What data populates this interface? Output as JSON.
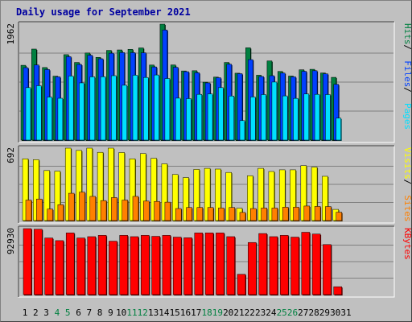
{
  "title": "Daily usage for September 2021",
  "colors": {
    "background": "#c0c0c0",
    "hits": "#008040",
    "files": "#0040ff",
    "pages": "#00e0ff",
    "visits": "#ffff00",
    "sites": "#ff8000",
    "kbytes": "#ff0000",
    "title": "#0000a0",
    "weekend": "#008040"
  },
  "chart_data": [
    {
      "type": "bar",
      "panel": "hits-files-pages",
      "axis_max_label": "1962",
      "ylim": [
        0,
        1962
      ],
      "grid": true,
      "legend": [
        {
          "text": "Hits",
          "color": "#008040"
        },
        {
          "text": "Files",
          "color": "#0040ff"
        },
        {
          "text": "Pages",
          "color": "#00e0ff"
        }
      ],
      "categories": [
        "1",
        "2",
        "3",
        "4",
        "5",
        "6",
        "7",
        "8",
        "9",
        "10",
        "11",
        "12",
        "13",
        "14",
        "15",
        "16",
        "17",
        "18",
        "19",
        "20",
        "21",
        "22",
        "23",
        "24",
        "25",
        "26",
        "27",
        "28",
        "29",
        "30",
        "31"
      ],
      "series": [
        {
          "name": "Hits",
          "values": [
            1266,
            1540,
            1228,
            1082,
            1446,
            1314,
            1474,
            1400,
            1518,
            1526,
            1536,
            1560,
            1270,
            1962,
            1272,
            1170,
            1174,
            980,
            1066,
            1314,
            1132,
            1562,
            1098,
            1340,
            1162,
            1084,
            1190,
            1198,
            1136,
            1062,
            0
          ]
        },
        {
          "name": "Files",
          "values": [
            1226,
            1272,
            1194,
            1070,
            1412,
            1280,
            1436,
            1376,
            1470,
            1482,
            1480,
            1478,
            1238,
            1864,
            1232,
            1158,
            1140,
            968,
            1056,
            1284,
            1124,
            1362,
            1076,
            1090,
            1134,
            1070,
            1164,
            1174,
            1122,
            944,
            0
          ]
        },
        {
          "name": "Pages",
          "values": [
            888,
            920,
            728,
            708,
            1084,
            968,
            1070,
            1072,
            1090,
            928,
            1098,
            1060,
            1102,
            1042,
            710,
            702,
            774,
            782,
            888,
            746,
            330,
            730,
            770,
            982,
            748,
            706,
            780,
            774,
            770,
            372,
            0
          ]
        }
      ]
    },
    {
      "type": "bar",
      "panel": "visits-sites",
      "axis_max_label": "692",
      "ylim": [
        0,
        692
      ],
      "grid": true,
      "legend": [
        {
          "text": "Visits",
          "color": "#ffff00"
        },
        {
          "text": "Sites",
          "color": "#ff8000"
        }
      ],
      "categories": [
        "1",
        "2",
        "3",
        "4",
        "5",
        "6",
        "7",
        "8",
        "9",
        "10",
        "11",
        "12",
        "13",
        "14",
        "15",
        "16",
        "17",
        "18",
        "19",
        "20",
        "21",
        "22",
        "23",
        "24",
        "25",
        "26",
        "27",
        "28",
        "29",
        "30",
        "31"
      ],
      "series": [
        {
          "name": "Visits",
          "values": [
            590,
            582,
            478,
            472,
            692,
            670,
            692,
            652,
            692,
            650,
            590,
            640,
            595,
            542,
            440,
            411,
            489,
            499,
            492,
            460,
            118,
            428,
            499,
            469,
            485,
            485,
            525,
            510,
            423,
            107,
            0
          ]
        },
        {
          "name": "Sites",
          "values": [
            196,
            206,
            110,
            152,
            261,
            272,
            231,
            191,
            220,
            196,
            231,
            186,
            183,
            176,
            115,
            125,
            125,
            125,
            120,
            125,
            78,
            115,
            120,
            120,
            128,
            128,
            139,
            135,
            134,
            80,
            0
          ]
        }
      ]
    },
    {
      "type": "bar",
      "panel": "kbytes",
      "axis_max_label": "92930",
      "ylim": [
        0,
        92930
      ],
      "grid": true,
      "legend": [
        {
          "text": "KBytes",
          "color": "#ff0000"
        }
      ],
      "categories": [
        "1",
        "2",
        "3",
        "4",
        "5",
        "6",
        "7",
        "8",
        "9",
        "10",
        "11",
        "12",
        "13",
        "14",
        "15",
        "16",
        "17",
        "18",
        "19",
        "20",
        "21",
        "22",
        "23",
        "24",
        "25",
        "26",
        "27",
        "28",
        "29",
        "30",
        "31"
      ],
      "series": [
        {
          "name": "KBytes",
          "values": [
            92930,
            92155,
            79762,
            76048,
            86887,
            79762,
            81627,
            83482,
            75293,
            83482,
            81627,
            83482,
            82102,
            83482,
            80987,
            80082,
            86887,
            86887,
            86887,
            81627,
            28656,
            73436,
            86032,
            81627,
            83482,
            80987,
            87817,
            85312,
            70486,
            11156,
            0
          ]
        }
      ]
    }
  ],
  "x_labels": [
    {
      "text": "1",
      "weekend": false
    },
    {
      "text": "2",
      "weekend": false
    },
    {
      "text": "3",
      "weekend": false
    },
    {
      "text": "4",
      "weekend": true
    },
    {
      "text": "5",
      "weekend": true
    },
    {
      "text": "6",
      "weekend": false
    },
    {
      "text": "7",
      "weekend": false
    },
    {
      "text": "8",
      "weekend": false
    },
    {
      "text": "9",
      "weekend": false
    },
    {
      "text": "10",
      "weekend": false
    },
    {
      "text": "11",
      "weekend": true
    },
    {
      "text": "12",
      "weekend": true
    },
    {
      "text": "13",
      "weekend": false
    },
    {
      "text": "14",
      "weekend": false
    },
    {
      "text": "15",
      "weekend": false
    },
    {
      "text": "16",
      "weekend": false
    },
    {
      "text": "17",
      "weekend": false
    },
    {
      "text": "18",
      "weekend": true
    },
    {
      "text": "19",
      "weekend": true
    },
    {
      "text": "20",
      "weekend": false
    },
    {
      "text": "21",
      "weekend": false
    },
    {
      "text": "22",
      "weekend": false
    },
    {
      "text": "23",
      "weekend": false
    },
    {
      "text": "24",
      "weekend": false
    },
    {
      "text": "25",
      "weekend": true
    },
    {
      "text": "26",
      "weekend": true
    },
    {
      "text": "27",
      "weekend": false
    },
    {
      "text": "28",
      "weekend": false
    },
    {
      "text": "29",
      "weekend": false
    },
    {
      "text": "30",
      "weekend": false
    },
    {
      "text": "31",
      "weekend": false
    }
  ]
}
